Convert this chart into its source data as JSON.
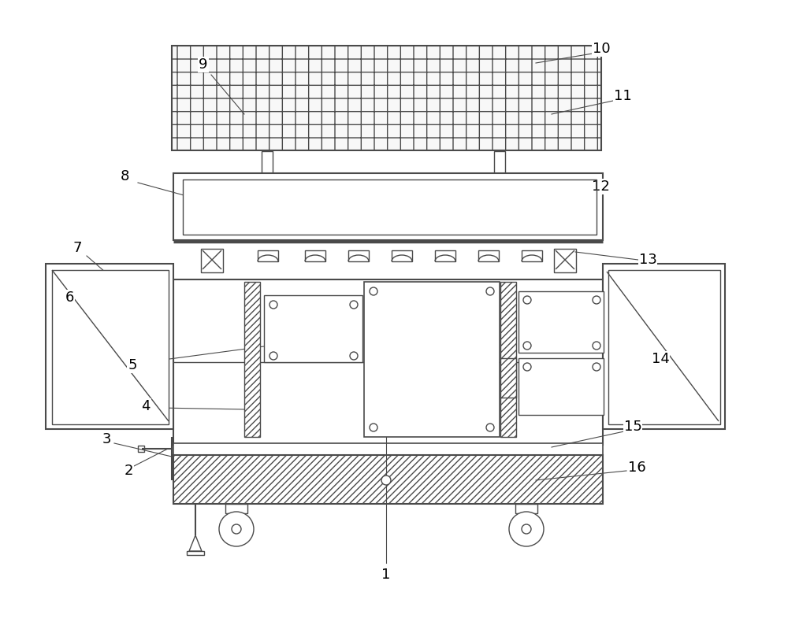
{
  "figure_width": 10.0,
  "figure_height": 7.85,
  "dpi": 100,
  "bg_color": "#ffffff",
  "line_color": "#4a4a4a",
  "lw": 1.0
}
